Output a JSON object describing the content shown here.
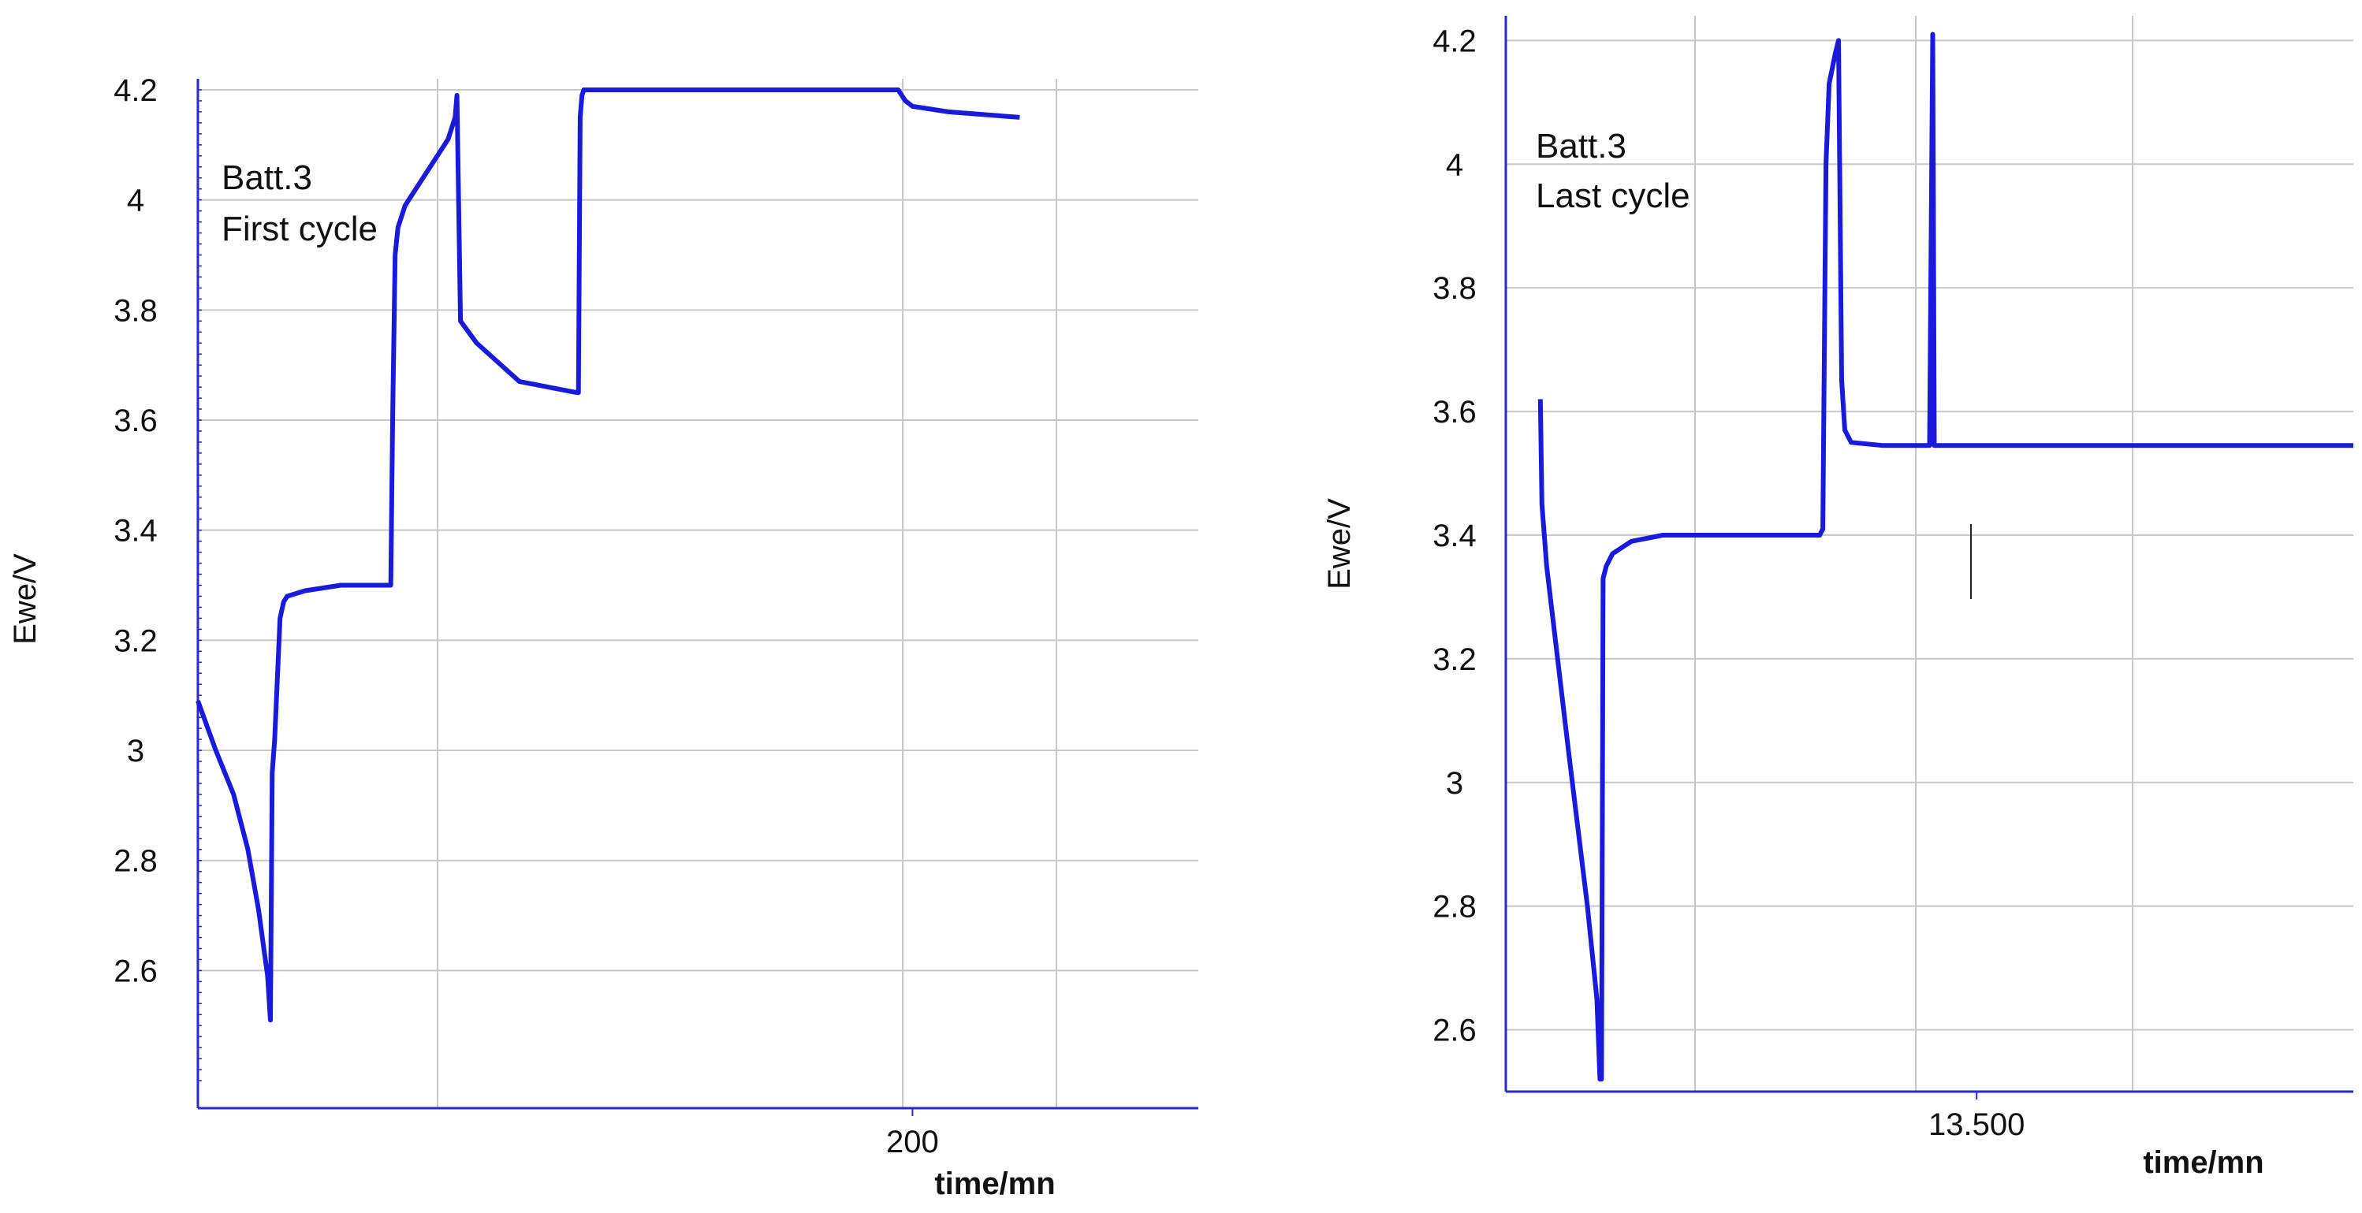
{
  "chart_data": [
    {
      "type": "line",
      "xlabel": "time/mn",
      "ylabel": "Ewe/V",
      "ylim": [
        2.35,
        4.22
      ],
      "xlim": [
        0,
        280
      ],
      "yticks": [
        "2.6",
        "2.8",
        "3",
        "3.2",
        "3.4",
        "3.6",
        "3.8",
        "4",
        "4.2"
      ],
      "xticks": [
        "200"
      ],
      "annotation": [
        "Batt.3",
        "First cycle"
      ],
      "grid": true,
      "color": "#1a1adc",
      "series": [
        {
          "x": [
            0,
            5,
            10,
            14,
            17,
            19.5,
            20.3,
            20.8,
            21.5,
            23,
            24,
            25,
            30,
            40,
            50,
            54,
            54.5,
            55.2,
            56,
            58,
            62,
            70,
            72,
            72.5,
            73.5,
            78,
            90,
            106,
            106.5,
            107,
            107.5,
            108,
            115,
            150,
            180,
            196,
            197,
            198,
            200,
            210,
            220,
            230
          ],
          "y": [
            3.09,
            3.0,
            2.92,
            2.82,
            2.71,
            2.59,
            2.51,
            2.96,
            3.02,
            3.24,
            3.27,
            3.28,
            3.29,
            3.3,
            3.3,
            3.3,
            3.6,
            3.9,
            3.95,
            3.99,
            4.03,
            4.11,
            4.15,
            4.19,
            3.78,
            3.74,
            3.67,
            3.65,
            3.65,
            4.15,
            4.19,
            4.2,
            4.2,
            4.2,
            4.2,
            4.2,
            4.19,
            4.18,
            4.17,
            4.16,
            4.155,
            4.15
          ]
        }
      ]
    },
    {
      "type": "line",
      "xlabel": "time/mn",
      "ylabel": "Ewe/V",
      "ylim": [
        2.5,
        4.24
      ],
      "xlim": [
        13350,
        13620
      ],
      "yticks": [
        "2.6",
        "2.8",
        "3",
        "3.2",
        "3.4",
        "3.6",
        "3.8",
        "4",
        "4.2"
      ],
      "xticks": [
        "13.500"
      ],
      "annotation": [
        "Batt.3",
        "Last cycle"
      ],
      "grid": true,
      "color": "#1a1adc",
      "series": [
        {
          "x": [
            13361,
            13361.5,
            13363,
            13370,
            13376,
            13379,
            13380,
            13380.5,
            13381,
            13382,
            13384,
            13390,
            13400,
            13420,
            13440,
            13450,
            13451,
            13452,
            13453,
            13455,
            13456,
            13457,
            13458,
            13460,
            13470,
            13480,
            13485,
            13486,
            13486.5,
            13487,
            13500,
            13550,
            13620
          ],
          "y": [
            3.62,
            3.45,
            3.35,
            3.05,
            2.8,
            2.65,
            2.52,
            2.52,
            3.33,
            3.35,
            3.37,
            3.39,
            3.4,
            3.4,
            3.4,
            3.4,
            3.41,
            4.0,
            4.13,
            4.18,
            4.2,
            3.65,
            3.57,
            3.55,
            3.545,
            3.545,
            3.545,
            4.21,
            3.545,
            3.545,
            3.545,
            3.545,
            3.545
          ]
        }
      ]
    }
  ]
}
